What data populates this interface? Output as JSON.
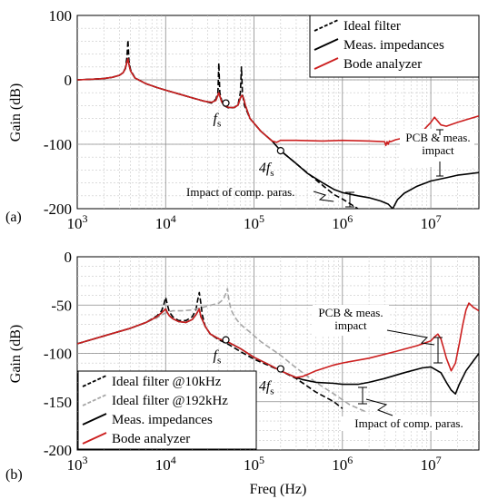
{
  "chart_data": [
    {
      "panel": "(a)",
      "type": "line",
      "xscale": "log",
      "xlim": [
        1000,
        35000000
      ],
      "ylim": [
        -200,
        100
      ],
      "yticks": [
        -200,
        -100,
        0,
        100
      ],
      "xlabel": "",
      "ylabel": "Gain (dB)",
      "grid": true,
      "legend_position": "top-right",
      "series": [
        {
          "name": "Ideal filter",
          "style": "dashed",
          "color": "#000000",
          "x": [
            1000,
            1500,
            2000,
            2500,
            3000,
            3300,
            3500,
            3650,
            3750,
            3850,
            4000,
            4500,
            6000,
            8000,
            10000,
            15000,
            20000,
            27000,
            33000,
            37000,
            39000,
            40000,
            41000,
            43000,
            46000,
            52000,
            60000,
            66000,
            70000,
            72000,
            74000,
            78000,
            90000,
            120000,
            160000,
            200000,
            300000,
            500000,
            800000,
            1000000,
            1500000
          ],
          "y": [
            0,
            1,
            2,
            4,
            7,
            11,
            18,
            35,
            62,
            30,
            16,
            3,
            -6,
            -12,
            -16,
            -23,
            -28,
            -33,
            -36,
            -30,
            -20,
            26,
            -20,
            -32,
            -40,
            -44,
            -43,
            -38,
            -20,
            20,
            -22,
            -40,
            -60,
            -80,
            -95,
            -110,
            -130,
            -155,
            -178,
            -185,
            -200
          ]
        },
        {
          "name": "Meas. impedances",
          "style": "solid",
          "color": "#000000",
          "x": [
            1000,
            1500,
            2000,
            2500,
            3000,
            3300,
            3500,
            3650,
            3750,
            3850,
            4000,
            4500,
            6000,
            8000,
            10000,
            15000,
            20000,
            27000,
            33000,
            37000,
            40000,
            43000,
            46000,
            52000,
            60000,
            66000,
            70000,
            73000,
            76000,
            80000,
            90000,
            120000,
            160000,
            200000,
            300000,
            400000,
            600000,
            800000,
            1000000,
            1500000,
            2000000,
            2700000,
            3300000,
            3700000,
            4200000,
            5000000,
            7000000,
            10000000,
            15000000,
            20000000,
            35000000
          ],
          "y": [
            0,
            1,
            2,
            4,
            7,
            11,
            17,
            28,
            33,
            24,
            14,
            3,
            -6,
            -12,
            -16,
            -23,
            -28,
            -33,
            -35,
            -32,
            -20,
            -34,
            -40,
            -43,
            -43,
            -39,
            -28,
            -24,
            -28,
            -40,
            -60,
            -80,
            -95,
            -110,
            -130,
            -145,
            -160,
            -170,
            -175,
            -180,
            -183,
            -188,
            -193,
            -200,
            -186,
            -176,
            -165,
            -157,
            -152,
            -148,
            -144
          ]
        },
        {
          "name": "Bode analyzer",
          "style": "solid",
          "color": "#cc1f1f",
          "x": [
            1000,
            1500,
            2000,
            2500,
            3000,
            3300,
            3500,
            3650,
            3750,
            3850,
            4000,
            4500,
            6000,
            8000,
            10000,
            15000,
            20000,
            27000,
            33000,
            37000,
            40000,
            43000,
            46000,
            52000,
            60000,
            66000,
            70000,
            73000,
            76000,
            80000,
            90000,
            120000,
            160000,
            180000,
            200000,
            300000,
            600000,
            1000000,
            2000000,
            3000000,
            3100000,
            3200000,
            3300000,
            3400000,
            3500000,
            4000000,
            5000000,
            6000000,
            7000000,
            8000000,
            10000000,
            11000000,
            13000000,
            15000000,
            20000000,
            25000000,
            35000000
          ],
          "y": [
            0,
            1,
            2,
            4,
            7,
            11,
            17,
            28,
            33,
            24,
            14,
            3,
            -6,
            -12,
            -16,
            -23,
            -28,
            -33,
            -35,
            -32,
            -20,
            -34,
            -40,
            -43,
            -43,
            -39,
            -28,
            -24,
            -28,
            -40,
            -60,
            -80,
            -95,
            -97,
            -94,
            -94,
            -95,
            -94,
            -95,
            -96,
            -102,
            -96,
            -100,
            -95,
            -96,
            -93,
            -90,
            -88,
            -85,
            -80,
            -66,
            -58,
            -70,
            -72,
            -66,
            -62,
            -56
          ]
        }
      ],
      "annotations": [
        {
          "text": "f",
          "subscript": "s",
          "x": 48000,
          "y": -36
        },
        {
          "text": "4f",
          "subscript": "s",
          "x": 200000,
          "y": -110
        },
        {
          "text": "Impact of comp. paras."
        },
        {
          "text": "PCB & meas."
        },
        {
          "text": "impact"
        }
      ]
    },
    {
      "panel": "(b)",
      "type": "line",
      "xscale": "log",
      "xlim": [
        1000,
        35000000
      ],
      "ylim": [
        -200,
        0
      ],
      "yticks": [
        -200,
        -150,
        -100,
        -50,
        0
      ],
      "xlabel": "Freq (Hz)",
      "ylabel": "Gain (dB)",
      "grid": true,
      "legend_position": "bottom-left",
      "series": [
        {
          "name": "Ideal filter @10kHz",
          "style": "dashed",
          "color": "#000000",
          "x": [
            1000,
            2000,
            4000,
            6000,
            8000,
            9000,
            9500,
            10000,
            10500,
            11000,
            12000,
            14000,
            17000,
            20000,
            22000,
            23000,
            24000,
            25000,
            26000,
            28000,
            32000,
            40000,
            50000,
            70000,
            100000,
            150000,
            200000,
            300000,
            500000,
            800000,
            1000000
          ],
          "y": [
            -90,
            -82,
            -74,
            -68,
            -61,
            -56,
            -50,
            -42,
            -50,
            -57,
            -62,
            -66,
            -66,
            -62,
            -55,
            -45,
            -37,
            -48,
            -60,
            -72,
            -80,
            -86,
            -90,
            -98,
            -106,
            -113,
            -118,
            -126,
            -140,
            -150,
            -157
          ]
        },
        {
          "name": "Ideal filter @192kHz",
          "style": "dashed",
          "color": "#a6a6a6",
          "x": [
            1000,
            2000,
            4000,
            6000,
            8000,
            10000,
            12000,
            15000,
            20000,
            30000,
            40000,
            45000,
            48000,
            50000,
            52000,
            55000,
            60000,
            70000,
            90000,
            120000,
            200000,
            300000,
            500000,
            800000,
            1200000,
            1800000
          ],
          "y": [
            -90,
            -82,
            -74,
            -68,
            -63,
            -58,
            -56,
            -56,
            -55,
            -51,
            -48,
            -44,
            -38,
            -33,
            -45,
            -55,
            -62,
            -70,
            -78,
            -88,
            -102,
            -115,
            -130,
            -142,
            -153,
            -160
          ]
        },
        {
          "name": "Meas. impedances",
          "style": "solid",
          "color": "#000000",
          "x": [
            1000,
            2000,
            4000,
            6000,
            8000,
            9000,
            9500,
            10000,
            10500,
            11000,
            12000,
            14000,
            17000,
            20000,
            22000,
            23000,
            24000,
            25000,
            26000,
            28000,
            32000,
            40000,
            50000,
            70000,
            100000,
            150000,
            200000,
            250000,
            300000,
            350000,
            500000,
            800000,
            1000000,
            1500000,
            2000000,
            3000000,
            5000000,
            8000000,
            10000000,
            13000000,
            15000000,
            17000000,
            19000000,
            21000000,
            25000000,
            35000000
          ],
          "y": [
            -90,
            -82,
            -74,
            -68,
            -62,
            -58,
            -56,
            -54,
            -58,
            -61,
            -64,
            -67,
            -68,
            -65,
            -60,
            -57,
            -54,
            -62,
            -65,
            -72,
            -80,
            -85,
            -88,
            -95,
            -104,
            -112,
            -118,
            -122,
            -125,
            -127,
            -130,
            -131,
            -132,
            -132,
            -130,
            -126,
            -120,
            -115,
            -114,
            -120,
            -130,
            -138,
            -142,
            -132,
            -118,
            -100
          ]
        },
        {
          "name": "Bode analyzer",
          "style": "solid",
          "color": "#cc1f1f",
          "x": [
            1000,
            2000,
            4000,
            6000,
            8000,
            9000,
            9500,
            10000,
            10500,
            11000,
            12000,
            14000,
            17000,
            20000,
            22000,
            23000,
            24000,
            25000,
            26000,
            28000,
            32000,
            40000,
            50000,
            70000,
            100000,
            150000,
            200000,
            250000,
            300000,
            350000,
            400000,
            500000,
            800000,
            1000000,
            2000000,
            4000000,
            7000000,
            10000000,
            11000000,
            12000000,
            13000000,
            14000000,
            15000000,
            17000000,
            19000000,
            21000000,
            23000000,
            25000000,
            27000000,
            30000000,
            35000000
          ],
          "y": [
            -90,
            -82,
            -74,
            -68,
            -62,
            -58,
            -56,
            -54,
            -58,
            -61,
            -64,
            -67,
            -68,
            -65,
            -60,
            -57,
            -54,
            -62,
            -65,
            -72,
            -80,
            -85,
            -88,
            -95,
            -104,
            -112,
            -118,
            -122,
            -125,
            -124,
            -122,
            -118,
            -112,
            -110,
            -105,
            -98,
            -92,
            -87,
            -83,
            -80,
            -85,
            -95,
            -105,
            -118,
            -110,
            -90,
            -70,
            -55,
            -48,
            -52,
            -56
          ]
        }
      ],
      "annotations": [
        {
          "text": "f",
          "subscript": "s",
          "x": 48000,
          "y": -86
        },
        {
          "text": "4f",
          "subscript": "s",
          "x": 200000,
          "y": -116
        },
        {
          "text": "PCB & meas."
        },
        {
          "text": "impact"
        },
        {
          "text": "Impact of comp. paras."
        }
      ]
    }
  ],
  "panel_labels": [
    "(a)",
    "(b)"
  ],
  "x_tick_labels": [
    "10",
    "10",
    "10",
    "10",
    "10",
    "10",
    "10",
    "10",
    "10",
    "10"
  ],
  "x_tick_exponents": [
    "3",
    "4",
    "5",
    "6",
    "7",
    "3",
    "4",
    "5",
    "6",
    "7"
  ]
}
